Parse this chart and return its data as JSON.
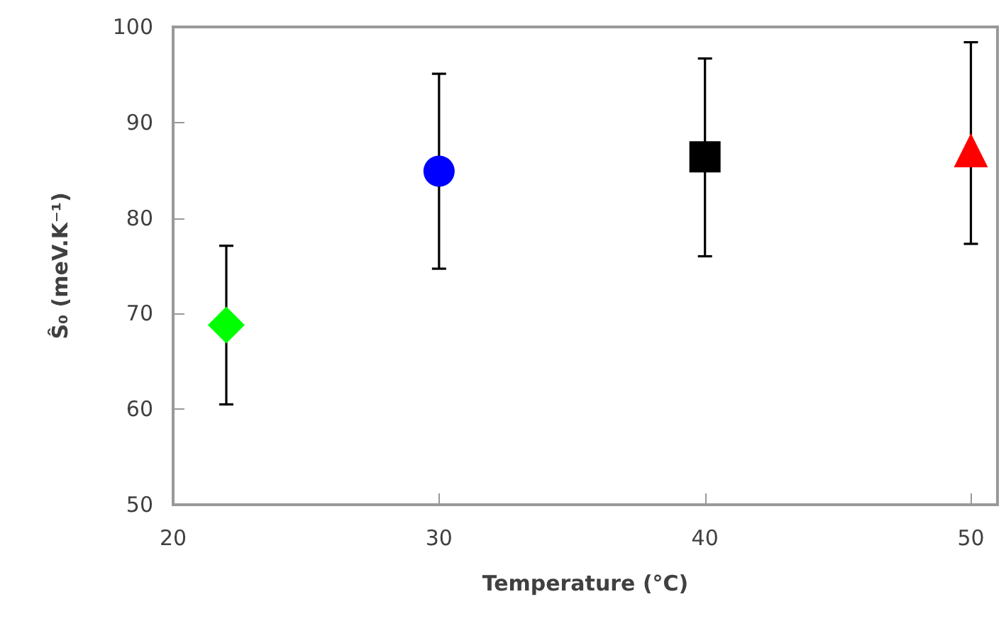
{
  "chart_data": {
    "type": "scatter",
    "xlabel": "Temperature (°C)",
    "ylabel": "Ŝ₀ (meV.K⁻¹)",
    "xlim": [
      20,
      51
    ],
    "xticks": [
      20,
      30,
      40,
      50
    ],
    "ylim": [
      50,
      100
    ],
    "yticks": [
      50,
      60,
      70,
      80,
      90,
      100
    ],
    "grid": false,
    "series": [
      {
        "color": "#00ff00",
        "marker": "diamond",
        "x": [
          22
        ],
        "values": [
          68.8
        ],
        "errors": [
          [
            60.5,
            77.1
          ]
        ]
      },
      {
        "color": "#0000ff",
        "marker": "circle",
        "x": [
          30
        ],
        "values": [
          84.9
        ],
        "errors": [
          [
            74.7,
            95.1
          ]
        ]
      },
      {
        "color": "#000000",
        "marker": "square",
        "x": [
          40
        ],
        "values": [
          86.4
        ],
        "errors": [
          [
            76.0,
            96.7
          ]
        ]
      },
      {
        "color": "#ff0000",
        "marker": "triangle",
        "x": [
          50
        ],
        "values": [
          87.1
        ],
        "errors": [
          [
            77.3,
            98.4
          ]
        ]
      }
    ]
  }
}
